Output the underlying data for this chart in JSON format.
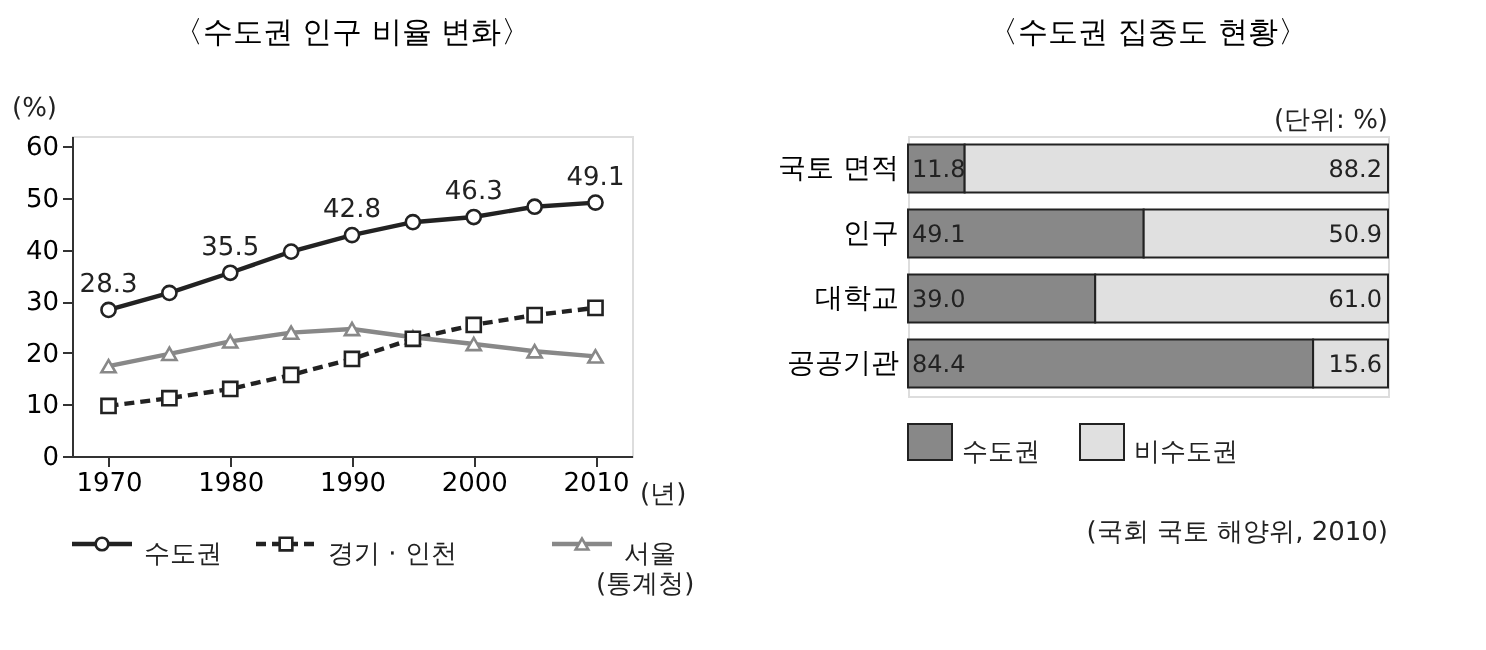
{
  "chart_data": [
    {
      "type": "line",
      "title": "〈수도권 인구 비율 변화〉",
      "xlabel": "(년)",
      "ylabel": "(%)",
      "x": [
        1970,
        1975,
        1980,
        1985,
        1990,
        1995,
        2000,
        2005,
        2010
      ],
      "series": [
        {
          "name": "수도권",
          "color": "#222222",
          "marker": "circle",
          "line_style": "solid",
          "values": [
            28.3,
            31.6,
            35.5,
            39.6,
            42.8,
            45.3,
            46.3,
            48.3,
            49.1
          ],
          "value_labels": [
            "28.3",
            null,
            "35.5",
            null,
            "42.8",
            null,
            "46.3",
            null,
            "49.1"
          ]
        },
        {
          "name": "경기 · 인천",
          "color": "#222222",
          "marker": "square",
          "line_style": "dashed",
          "values": [
            9.7,
            11.2,
            13.0,
            15.7,
            18.8,
            22.7,
            25.4,
            27.3,
            28.7
          ]
        },
        {
          "name": "서울",
          "color": "#888888",
          "marker": "triangle",
          "line_style": "solid",
          "values": [
            17.4,
            19.8,
            22.2,
            23.9,
            24.6,
            23.0,
            21.7,
            20.3,
            19.3
          ]
        }
      ],
      "xlim": [
        1967,
        2013
      ],
      "xticks": [
        1970,
        1980,
        1990,
        2000,
        2010
      ],
      "ylim": [
        0,
        62
      ],
      "yticks": [
        0,
        10,
        20,
        30,
        40,
        50,
        60
      ],
      "grid": false,
      "legend": "bottom",
      "annotations": [
        "(통계청)"
      ]
    },
    {
      "type": "bar",
      "title": "〈수도권 집중도 현황〉",
      "orientation": "horizontal",
      "stacked": true,
      "categories": [
        "국토 면적",
        "인구",
        "대학교",
        "공공기관"
      ],
      "series": [
        {
          "name": "수도권",
          "color": "#888888",
          "values": [
            11.8,
            49.1,
            39.0,
            84.4
          ],
          "value_labels": [
            "11.8",
            "49.1",
            "39.0",
            "84.4"
          ]
        },
        {
          "name": "비수도권",
          "color": "#e0e0e0",
          "values": [
            88.2,
            50.9,
            61.0,
            15.6
          ],
          "value_labels": [
            "88.2",
            "50.9",
            "61.0",
            "15.6"
          ]
        }
      ],
      "grid": false,
      "legend": "bottom",
      "annotations": [
        "(단위: %)",
        "(국회 국토 해양위, 2010)"
      ]
    }
  ]
}
